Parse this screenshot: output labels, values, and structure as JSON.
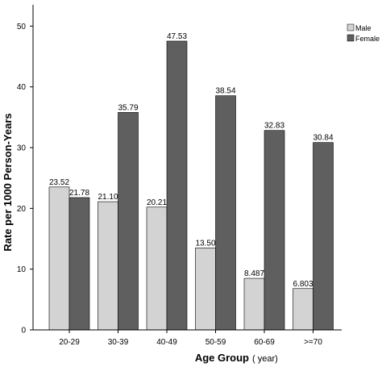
{
  "chart_data": {
    "type": "bar",
    "categories": [
      "20-29",
      "30-39",
      "40-49",
      "50-59",
      "60-69",
      ">=70"
    ],
    "series": [
      {
        "name": "Male",
        "values": [
          23.52,
          21.1,
          20.21,
          13.5,
          8.487,
          6.803
        ],
        "labels": [
          "23.52",
          "21.10",
          "20.21",
          "13.50",
          "8.487",
          "6.803"
        ],
        "color": "#d3d3d3"
      },
      {
        "name": "Female",
        "values": [
          21.78,
          35.79,
          47.53,
          38.54,
          32.83,
          30.84
        ],
        "labels": [
          "21.78",
          "35.79",
          "47.53",
          "38.54",
          "32.83",
          "30.84"
        ],
        "color": "#5f5f5f"
      }
    ],
    "xlabel": "Age Group",
    "xlabel_unit": "( year)",
    "ylabel": "Rate per 1000 Person-Years",
    "ylim": [
      0,
      53.5
    ],
    "yticks": [
      0,
      10,
      20,
      30,
      40,
      50
    ],
    "grid": false,
    "legend": "top-right"
  }
}
